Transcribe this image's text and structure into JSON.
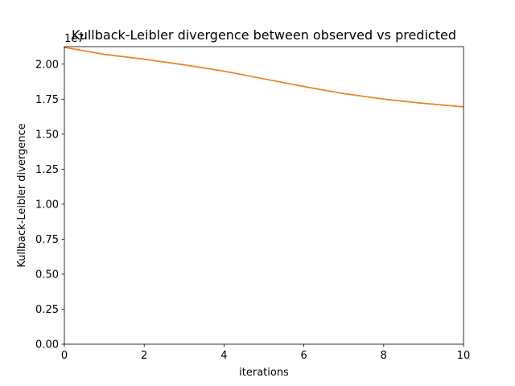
{
  "chart_data": {
    "type": "line",
    "title": "Kullback-Leibler divergence between observed vs predicted",
    "xlabel": "iterations",
    "ylabel": "Kullback-Leibler divergence",
    "offset_label": "1e7",
    "xlim": [
      0,
      10
    ],
    "ylim": [
      0,
      21250000
    ],
    "x_ticks": [
      0,
      2,
      4,
      6,
      8,
      10
    ],
    "x_tick_labels": [
      "0",
      "2",
      "4",
      "6",
      "8",
      "10"
    ],
    "y_ticks": [
      0,
      2500000,
      5000000,
      7500000,
      10000000,
      12500000,
      15000000,
      17500000,
      20000000
    ],
    "y_tick_labels": [
      "0.00",
      "0.25",
      "0.50",
      "0.75",
      "1.00",
      "1.25",
      "1.50",
      "1.75",
      "2.00"
    ],
    "grid": false,
    "x": [
      0,
      1,
      2,
      3,
      4,
      5,
      6,
      7,
      8,
      9,
      10
    ],
    "series": [
      {
        "values": [
          21200000,
          20700000,
          20350000,
          19950000,
          19500000,
          18950000,
          18400000,
          17900000,
          17500000,
          17200000,
          16950000
        ],
        "color": "#1f77b4"
      },
      {
        "values": [
          21200000,
          20700000,
          20350000,
          19950000,
          19500000,
          18950000,
          18400000,
          17900000,
          17500000,
          17200000,
          16950000
        ],
        "color": "#ff7f0e"
      }
    ]
  }
}
